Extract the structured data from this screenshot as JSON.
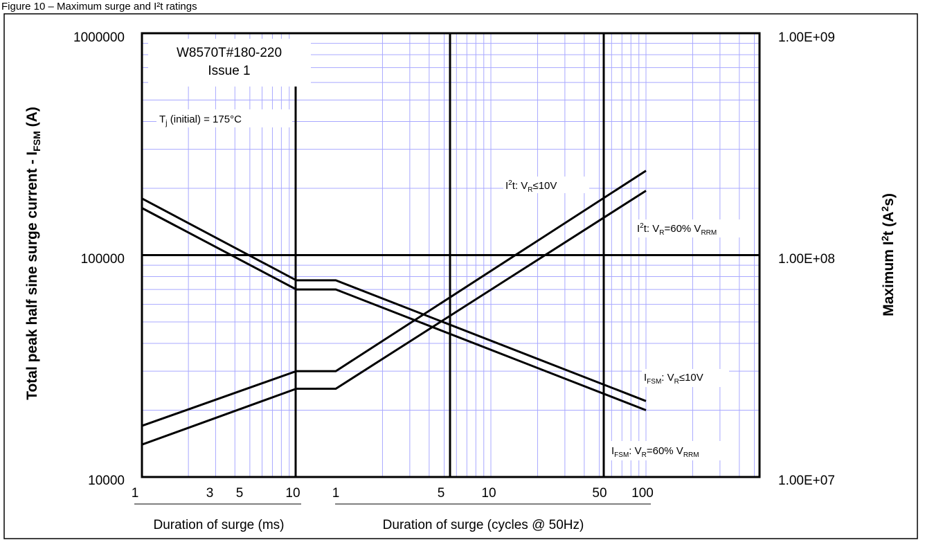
{
  "figure_caption": "Figure 10 – Maximum surge and I²t ratings",
  "chart_data": {
    "type": "line",
    "y_left": {
      "label_main": "Total peak half sine surge current - I",
      "label_sub": "FSM",
      "label_end": " (A)",
      "scale": "log",
      "range": [
        10000,
        1000000
      ],
      "tick_labels": [
        "1000000",
        "100000",
        "10000"
      ],
      "tick_values": [
        1000000,
        100000,
        10000
      ]
    },
    "y_right": {
      "label_main": "Maximum I",
      "label_sup": "2",
      "label_mid": "t (A",
      "label_sup2": "2",
      "label_end": "s)",
      "scale": "log",
      "range": [
        10000000,
        1000000000
      ],
      "tick_labels": [
        "1.00E+09",
        "1.00E+08",
        "1.00E+07"
      ],
      "tick_values": [
        1000000000,
        100000000,
        10000000
      ]
    },
    "x_ms": {
      "label": "Duration of surge (ms)",
      "scale": "log",
      "range": [
        1,
        10
      ],
      "tick_labels": [
        "1",
        "3",
        "5",
        "10"
      ],
      "tick_values": [
        1,
        3,
        5,
        10
      ]
    },
    "x_cycles": {
      "label": "Duration of surge (cycles @ 50Hz)",
      "scale": "log",
      "range": [
        1,
        100
      ],
      "tick_labels": [
        "1",
        "5",
        "10",
        "50",
        "100"
      ],
      "tick_values": [
        1,
        5,
        10,
        50,
        100
      ]
    },
    "grid": true,
    "annotations": {
      "doc_line1": "W8570T#180-220",
      "doc_line2": "Issue 1",
      "tj_main": "T",
      "tj_sub": "j",
      "tj_rest": " (initial) = 175°C"
    },
    "series": [
      {
        "name": "I²t: VR≤10V",
        "axis": "right",
        "points": [
          {
            "unit": "ms",
            "x": 1,
            "y": 17000000
          },
          {
            "unit": "ms",
            "x": 10,
            "y": 30000000
          },
          {
            "unit": "cycles",
            "x": 1,
            "y": 30000000
          },
          {
            "unit": "cycles",
            "x": 100,
            "y": 240000000
          }
        ]
      },
      {
        "name": "I²t: VR=60% VRRM",
        "axis": "right",
        "points": [
          {
            "unit": "ms",
            "x": 1,
            "y": 14000000
          },
          {
            "unit": "ms",
            "x": 10,
            "y": 25000000
          },
          {
            "unit": "cycles",
            "x": 1,
            "y": 25000000
          },
          {
            "unit": "cycles",
            "x": 100,
            "y": 195000000
          }
        ]
      },
      {
        "name": "IFSM: VR≤10V",
        "axis": "left",
        "points": [
          {
            "unit": "ms",
            "x": 1,
            "y": 180000
          },
          {
            "unit": "ms",
            "x": 10,
            "y": 77000
          },
          {
            "unit": "cycles",
            "x": 1,
            "y": 77000
          },
          {
            "unit": "cycles",
            "x": 100,
            "y": 22000
          }
        ]
      },
      {
        "name": "IFSM: VR=60% VRRM",
        "axis": "left",
        "points": [
          {
            "unit": "ms",
            "x": 1,
            "y": 163000
          },
          {
            "unit": "ms",
            "x": 10,
            "y": 70000
          },
          {
            "unit": "cycles",
            "x": 1,
            "y": 70000
          },
          {
            "unit": "cycles",
            "x": 100,
            "y": 20000
          }
        ]
      }
    ],
    "series_labels": {
      "i2t_10v": {
        "a": "I",
        "a_sup": "2",
        "b": "t:  V",
        "b_sub": "R",
        "c": "≤10V"
      },
      "i2t_60": {
        "a": "I",
        "a_sup": "2",
        "b": "t:  V",
        "b_sub": "R",
        "c": "=60% V",
        "c_sub": "RRM"
      },
      "ifsm_10v": {
        "a": "I",
        "a_sub": "FSM",
        "b": ":  V",
        "b_sub": "R",
        "c": "≤10V"
      },
      "ifsm_60": {
        "a": "I",
        "a_sub": "FSM",
        "b": ":  V",
        "b_sub": "R",
        "c": "=60% V",
        "c_sub": "RRM"
      }
    }
  }
}
